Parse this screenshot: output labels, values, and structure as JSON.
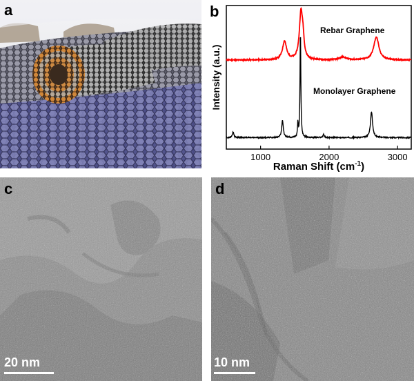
{
  "panels": {
    "a": {
      "label": "a"
    },
    "b": {
      "label": "b"
    },
    "c": {
      "label": "c",
      "scale_bar": "20 nm"
    },
    "d": {
      "label": "d",
      "scale_bar": "10 nm"
    }
  },
  "chart_data": {
    "type": "line",
    "xlabel_main": "Raman Shift (cm",
    "xlabel_sup": "-1",
    "xlabel_close": ")",
    "ylabel": "Intensity (a.u.)",
    "xlim": [
      500,
      3200
    ],
    "xticks": [
      1000,
      2000,
      3000
    ],
    "xtick_labels": [
      "1000",
      "2000",
      "3000"
    ],
    "series": [
      {
        "name": "Rebar Graphene",
        "color": "#ff0000",
        "offset": 0.62,
        "peaks": [
          {
            "x": 1350,
            "height": 0.13,
            "width": 35
          },
          {
            "x": 1590,
            "height": 0.33,
            "width": 28
          },
          {
            "x": 1620,
            "height": 0.1,
            "width": 18
          },
          {
            "x": 2200,
            "height": 0.02,
            "width": 60
          },
          {
            "x": 2690,
            "height": 0.16,
            "width": 45
          }
        ]
      },
      {
        "name": "Monolayer Graphene",
        "color": "#000000",
        "offset": 0.08,
        "peaks": [
          {
            "x": 600,
            "height": 0.04,
            "width": 12
          },
          {
            "x": 1320,
            "height": 0.12,
            "width": 14
          },
          {
            "x": 1545,
            "height": 0.1,
            "width": 6
          },
          {
            "x": 1582,
            "height": 0.75,
            "width": 7
          },
          {
            "x": 1920,
            "height": 0.025,
            "width": 10
          },
          {
            "x": 2620,
            "height": 0.18,
            "width": 18
          }
        ]
      }
    ]
  },
  "colors": {
    "rebar": "#ff0000",
    "monolayer": "#000000"
  }
}
